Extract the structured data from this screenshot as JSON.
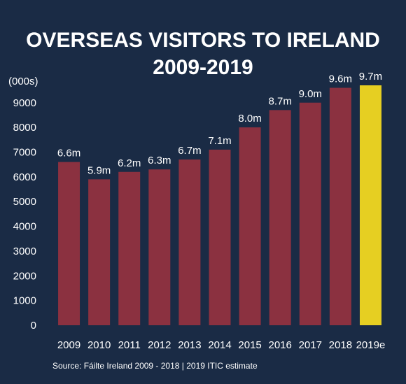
{
  "chart_data": {
    "type": "bar",
    "title_line1": "OVERSEAS VISITORS TO IRELAND",
    "title_line2": "2009-2019",
    "y_unit_label": "(000s)",
    "categories": [
      "2009",
      "2010",
      "2011",
      "2012",
      "2013",
      "2014",
      "2015",
      "2016",
      "2017",
      "2018",
      "2019e"
    ],
    "values": [
      6600,
      5900,
      6200,
      6300,
      6700,
      7100,
      8000,
      8700,
      9000,
      9600,
      9700
    ],
    "data_labels": [
      "6.6m",
      "5.9m",
      "6.2m",
      "6.3m",
      "6.7m",
      "7.1m",
      "8.0m",
      "8.7m",
      "9.0m",
      "9.6m",
      "9.7m"
    ],
    "highlight_index": 10,
    "ylim": [
      0,
      9700
    ],
    "yticks": [
      "0",
      "1000",
      "2000",
      "3000",
      "4000",
      "5000",
      "6000",
      "7000",
      "8000",
      "9000"
    ],
    "grid": false,
    "colors": {
      "background": "#1a2b45",
      "bar": "#8b3140",
      "highlight": "#e6cf22",
      "text": "#ffffff"
    },
    "source": "Source: Fáilte Ireland 2009 - 2018  |  2019 ITIC estimate"
  }
}
